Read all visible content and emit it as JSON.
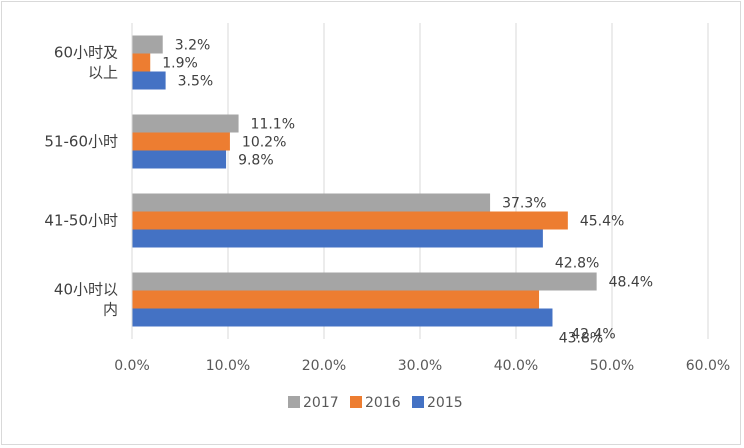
{
  "chart_data": {
    "type": "bar",
    "orientation": "horizontal",
    "categories": [
      "60小时及以上",
      "51-60小时",
      "41-50小时",
      "40小时以内"
    ],
    "category_label_lines": [
      [
        "60小时及",
        "以上"
      ],
      [
        "51-60小时"
      ],
      [
        "41-50小时"
      ],
      [
        "40小时以",
        "内"
      ]
    ],
    "series": [
      {
        "name": "2017",
        "color": "#a5a5a5",
        "values": [
          3.2,
          11.1,
          37.3,
          48.4
        ],
        "labels": [
          "3.2%",
          "11.1%",
          "37.3%",
          "48.4%"
        ]
      },
      {
        "name": "2016",
        "color": "#ed7d31",
        "values": [
          1.9,
          10.2,
          45.4,
          42.4
        ],
        "labels": [
          "1.9%",
          "10.2%",
          "45.4%",
          "42.4%"
        ]
      },
      {
        "name": "2015",
        "color": "#4472c4",
        "values": [
          3.5,
          9.8,
          42.8,
          43.8
        ],
        "labels": [
          "3.5%",
          "9.8%",
          "42.8%",
          "43.8%"
        ]
      }
    ],
    "xlim": [
      0,
      60
    ],
    "x_ticks": [
      0,
      10,
      20,
      30,
      40,
      50,
      60
    ],
    "x_tick_labels": [
      "0.0%",
      "10.0%",
      "20.0%",
      "30.0%",
      "40.0%",
      "50.0%",
      "60.0%"
    ],
    "grid": "vertical",
    "legend_position": "bottom",
    "gridline_color": "#d9d9d9"
  }
}
